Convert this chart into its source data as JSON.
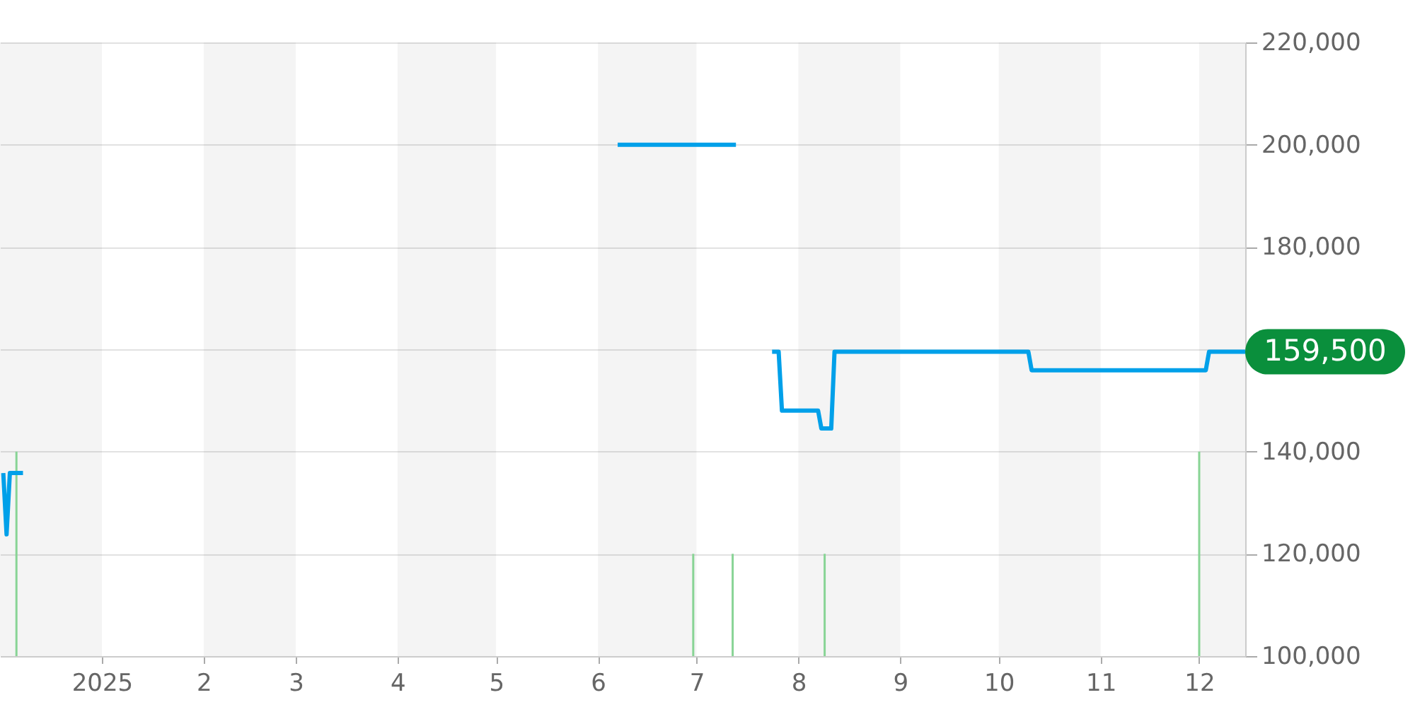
{
  "chart_data": {
    "type": "line",
    "xlim": [
      "2024-12-01",
      "2025-12-15"
    ],
    "xticks": [
      {
        "value": "2025-01-01",
        "label": "2025"
      },
      {
        "value": "2025-02-01",
        "label": "2"
      },
      {
        "value": "2025-03-01",
        "label": "3"
      },
      {
        "value": "2025-04-01",
        "label": "4"
      },
      {
        "value": "2025-05-01",
        "label": "5"
      },
      {
        "value": "2025-06-01",
        "label": "6"
      },
      {
        "value": "2025-07-01",
        "label": "7"
      },
      {
        "value": "2025-08-01",
        "label": "8"
      },
      {
        "value": "2025-09-01",
        "label": "9"
      },
      {
        "value": "2025-10-01",
        "label": "10"
      },
      {
        "value": "2025-11-01",
        "label": "11"
      },
      {
        "value": "2025-12-01",
        "label": "12"
      }
    ],
    "ylim": [
      100000,
      220000
    ],
    "yticks": [
      {
        "value": 100000,
        "label": "100,000"
      },
      {
        "value": 120000,
        "label": "120,000"
      },
      {
        "value": 140000,
        "label": "140,000"
      },
      {
        "value": 160000,
        "label": null
      },
      {
        "value": 180000,
        "label": "180,000"
      },
      {
        "value": 200000,
        "label": "200,000"
      },
      {
        "value": 220000,
        "label": "220,000"
      }
    ],
    "grid": "y",
    "bands": [
      {
        "axis": "x",
        "from": "2024-12-01",
        "to": "2025-01-01",
        "color": "#f4f4f4"
      },
      {
        "axis": "x",
        "from": "2025-02-01",
        "to": "2025-03-01",
        "color": "#f4f4f4"
      },
      {
        "axis": "x",
        "from": "2025-04-01",
        "to": "2025-05-01",
        "color": "#f4f4f4"
      },
      {
        "axis": "x",
        "from": "2025-06-01",
        "to": "2025-07-01",
        "color": "#f4f4f4"
      },
      {
        "axis": "x",
        "from": "2025-08-01",
        "to": "2025-09-01",
        "color": "#f4f4f4"
      },
      {
        "axis": "x",
        "from": "2025-10-01",
        "to": "2025-11-01",
        "color": "#f4f4f4"
      },
      {
        "axis": "x",
        "from": "2025-12-01",
        "to": "2025-12-15",
        "color": "#f4f4f4"
      }
    ],
    "series": [
      {
        "type": "bar",
        "color": "#88d495",
        "x": [
          "2024-12-06",
          "2025-06-30",
          "2025-07-12",
          "2025-08-09",
          "2025-12-01"
        ],
        "values": [
          140000,
          120000,
          120000,
          120000,
          140000
        ]
      },
      {
        "color": "#00a0e9",
        "x": [
          "2024-12-02",
          "2024-12-03",
          "2024-12-04",
          "2024-12-08",
          "2025-03-01",
          "2025-06-07",
          "2025-07-13",
          "2025-07-18",
          "2025-07-24",
          "2025-07-26",
          "2025-07-27",
          "2025-08-07",
          "2025-08-08",
          "2025-08-11",
          "2025-08-12",
          "2025-10-10",
          "2025-10-11",
          "2025-12-03",
          "2025-12-04",
          "2025-12-15"
        ],
        "values": [
          135800,
          123800,
          135800,
          135800,
          null,
          200000,
          200000,
          null,
          159500,
          159500,
          148000,
          148000,
          144500,
          144500,
          159500,
          159500,
          155900,
          155900,
          159500,
          159500
        ],
        "value_labels": [
          null,
          null,
          null,
          null,
          null,
          null,
          null,
          null,
          null,
          null,
          null,
          null,
          null,
          null,
          null,
          null,
          null,
          null,
          null,
          "159,500"
        ]
      }
    ]
  }
}
